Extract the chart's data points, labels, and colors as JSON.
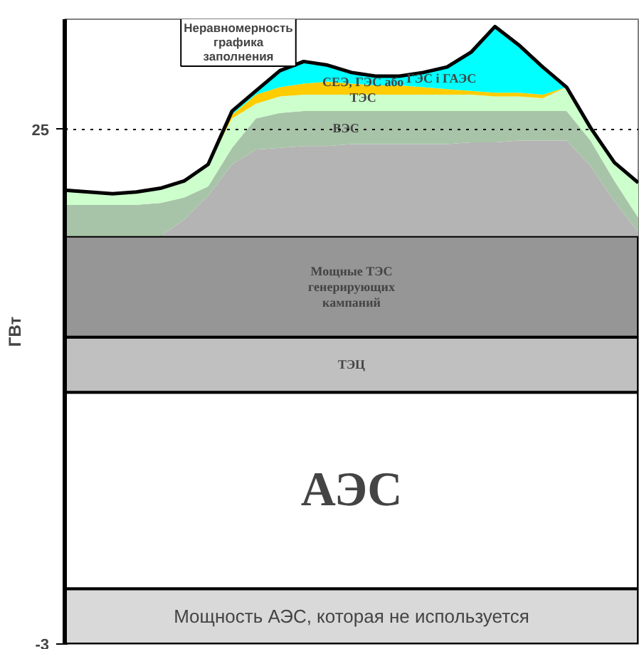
{
  "chart_data": {
    "type": "area",
    "stacked": true,
    "ylabel": "ГВт",
    "ylim": [
      -3,
      31
    ],
    "yticks": [
      -3,
      25
    ],
    "tick_labels": "y",
    "bands": [
      {
        "axis": "y",
        "from": -3,
        "to": 0,
        "label": "Мощность АЭС, которая не используется",
        "color": "#d9d9d9"
      }
    ],
    "categories": [
      null,
      null,
      null,
      null,
      null,
      null,
      null,
      null,
      null,
      null,
      null,
      null,
      null,
      null,
      null,
      null,
      null,
      null,
      null,
      null,
      null,
      null,
      null,
      null,
      null
    ],
    "annotations": [
      "Неравномерность графика заполнения"
    ],
    "ref_lines": [
      {
        "axis": "y",
        "value": 25,
        "color": "#000000",
        "line_style": "dotted"
      }
    ],
    "series": [
      {
        "name": "АЭС",
        "color": "#ffffff",
        "values": [
          10.7,
          10.7,
          10.7,
          10.7,
          10.7,
          10.7,
          10.7,
          10.7,
          10.7,
          10.7,
          10.7,
          10.7,
          10.7,
          10.7,
          10.7,
          10.7,
          10.7,
          10.7,
          10.7,
          10.7,
          10.7,
          10.7,
          10.7,
          10.7,
          10.7
        ]
      },
      {
        "name": "ТЭЦ",
        "color": "#c0c0c0",
        "values": [
          3.0,
          3.0,
          3.0,
          3.0,
          3.0,
          3.0,
          3.0,
          3.0,
          3.0,
          3.0,
          3.0,
          3.0,
          3.0,
          3.0,
          3.0,
          3.0,
          3.0,
          3.0,
          3.0,
          3.0,
          3.0,
          3.0,
          3.0,
          3.0,
          3.0
        ]
      },
      {
        "name": "Мощные ТЭС генерирующих кампаний",
        "color": "#969696",
        "values": [
          5.5,
          5.5,
          5.5,
          5.5,
          5.5,
          5.5,
          5.5,
          5.5,
          5.5,
          5.5,
          5.5,
          5.5,
          5.5,
          5.5,
          5.5,
          5.5,
          5.5,
          5.5,
          5.5,
          5.5,
          5.5,
          5.5,
          5.5,
          5.5,
          5.5
        ]
      },
      {
        "color": "#b4b4b4",
        "values": [
          0,
          0,
          0,
          0,
          0,
          0.9,
          2.2,
          3.9,
          4.7,
          4.8,
          4.9,
          4.9,
          5.0,
          5.0,
          5.0,
          5.0,
          5.0,
          5.1,
          5.1,
          5.2,
          5.2,
          5.2,
          3.8,
          1.9,
          0.2
        ]
      },
      {
        "name": "ВЭС",
        "color": "#a8c4a8",
        "values": [
          1.7,
          1.7,
          1.7,
          1.7,
          1.8,
          1.2,
          0.5,
          0.9,
          1.7,
          1.9,
          1.9,
          1.9,
          1.8,
          1.8,
          1.8,
          1.8,
          1.8,
          1.7,
          1.7,
          1.6,
          1.6,
          1.6,
          1.4,
          1.1,
          0.8
        ]
      },
      {
        "color": "#ccffcc",
        "values": [
          0.8,
          0.7,
          0.6,
          0.7,
          0.8,
          0.9,
          1.2,
          1.6,
          0.8,
          0.9,
          0.9,
          0.9,
          0.9,
          0.9,
          0.9,
          0.9,
          0.9,
          0.9,
          0.8,
          0.8,
          0.7,
          1.3,
          0.7,
          1.0,
          1.9
        ]
      },
      {
        "name": "СЕЭ, ГЭС або ТЭС",
        "color": "#ffcc00",
        "values": [
          0,
          0,
          0,
          0,
          0,
          0,
          0,
          0.2,
          0.5,
          0.5,
          0.6,
          0.7,
          0.6,
          0.5,
          0.5,
          0.4,
          0.3,
          0.2,
          0.2,
          0.2,
          0.2,
          0,
          0,
          0,
          0
        ]
      },
      {
        "name": "ГЭС і ГАЭС",
        "color": "#00ffff",
        "values": [
          0,
          0,
          0,
          0,
          0,
          0,
          0,
          0.2,
          0.2,
          0.9,
          1.2,
          0.9,
          0.6,
          0.5,
          0.5,
          0.8,
          1.2,
          2.1,
          3.6,
          2.6,
          1.5,
          0,
          0,
          0,
          0
        ]
      }
    ]
  }
}
